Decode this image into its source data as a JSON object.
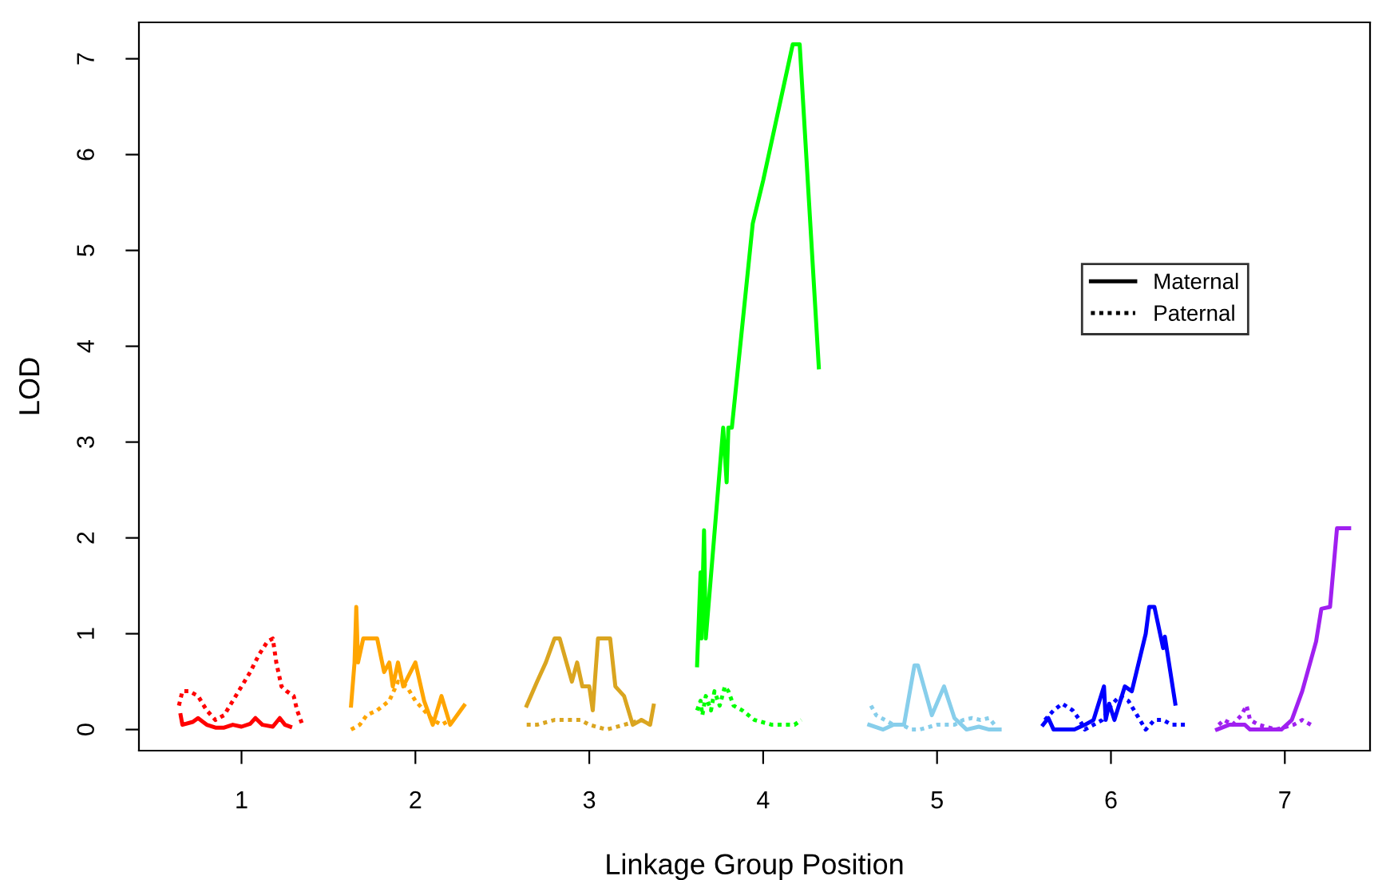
{
  "chart_data": {
    "type": "line",
    "xlabel": "Linkage Group Position",
    "ylabel": "LOD",
    "xlim": [
      0.41,
      7.49
    ],
    "xticks": [
      1,
      2,
      3,
      4,
      5,
      6,
      7
    ],
    "ylim": [
      -0.22,
      7.38
    ],
    "yticks": [
      0,
      1,
      2,
      3,
      4,
      5,
      6,
      7
    ],
    "grid": false,
    "marker": "none",
    "annotations": [
      "Maternal",
      "Paternal"
    ],
    "series": [
      {
        "color": "#ff0000",
        "line_style": "solid",
        "x": [
          0.65,
          0.66,
          0.72,
          0.75,
          0.8,
          0.85,
          0.9,
          0.95,
          1.0,
          1.05,
          1.08,
          1.12,
          1.18,
          1.22,
          1.25,
          1.28
        ],
        "values": [
          0.15,
          0.05,
          0.08,
          0.12,
          0.05,
          0.02,
          0.02,
          0.05,
          0.03,
          0.06,
          0.12,
          0.05,
          0.03,
          0.12,
          0.05,
          0.03
        ]
      },
      {
        "color": "#ff0000",
        "line_style": "dotted",
        "x": [
          0.64,
          0.66,
          0.7,
          0.75,
          0.8,
          0.85,
          0.9,
          0.95,
          1.0,
          1.05,
          1.1,
          1.15,
          1.18,
          1.2,
          1.23,
          1.26,
          1.3,
          1.32,
          1.35
        ],
        "values": [
          0.25,
          0.4,
          0.4,
          0.35,
          0.2,
          0.1,
          0.15,
          0.3,
          0.45,
          0.6,
          0.78,
          0.92,
          0.95,
          0.7,
          0.45,
          0.4,
          0.35,
          0.2,
          0.05
        ]
      },
      {
        "color": "#ffa500",
        "line_style": "solid",
        "x": [
          1.63,
          1.65,
          1.66,
          1.67,
          1.7,
          1.78,
          1.82,
          1.85,
          1.87,
          1.9,
          1.93,
          2.0,
          2.05,
          2.1,
          2.15,
          2.2,
          2.28
        ],
        "values": [
          0.25,
          0.7,
          1.28,
          0.7,
          0.95,
          0.95,
          0.6,
          0.7,
          0.45,
          0.7,
          0.45,
          0.7,
          0.3,
          0.05,
          0.35,
          0.05,
          0.25
        ]
      },
      {
        "color": "#ffa500",
        "line_style": "dotted",
        "x": [
          1.63,
          1.68,
          1.72,
          1.78,
          1.85,
          1.9,
          1.95,
          2.0,
          2.05,
          2.1,
          2.15,
          2.2
        ],
        "values": [
          0.0,
          0.05,
          0.15,
          0.2,
          0.3,
          0.5,
          0.45,
          0.3,
          0.2,
          0.1,
          0.05,
          0.1
        ]
      },
      {
        "color": "#daa520",
        "line_style": "solid",
        "x": [
          2.64,
          2.7,
          2.75,
          2.8,
          2.83,
          2.9,
          2.93,
          2.96,
          3.0,
          3.02,
          3.05,
          3.12,
          3.15,
          3.2,
          3.25,
          3.3,
          3.35,
          3.37
        ],
        "values": [
          0.25,
          0.5,
          0.7,
          0.95,
          0.95,
          0.5,
          0.7,
          0.45,
          0.45,
          0.2,
          0.95,
          0.95,
          0.45,
          0.35,
          0.05,
          0.1,
          0.05,
          0.25
        ]
      },
      {
        "color": "#daa520",
        "line_style": "dotted",
        "x": [
          2.64,
          2.7,
          2.8,
          2.9,
          2.95,
          3.0,
          3.1,
          3.2,
          3.3,
          3.35
        ],
        "values": [
          0.05,
          0.05,
          0.1,
          0.1,
          0.1,
          0.05,
          0.0,
          0.05,
          0.1,
          0.05
        ]
      },
      {
        "color": "#00ff00",
        "line_style": "solid",
        "x": [
          3.62,
          3.64,
          3.645,
          3.66,
          3.67,
          3.77,
          3.79,
          3.8,
          3.82,
          3.94,
          4.0,
          4.17,
          4.21,
          4.32
        ],
        "values": [
          0.67,
          1.64,
          0.95,
          2.08,
          0.95,
          3.15,
          2.58,
          3.15,
          3.15,
          5.28,
          5.73,
          7.15,
          7.15,
          3.78
        ]
      },
      {
        "color": "#00ff00",
        "line_style": "dotted",
        "x": [
          3.62,
          3.64,
          3.65,
          3.67,
          3.7,
          3.72,
          3.75,
          3.78,
          3.8,
          3.83,
          3.88,
          3.95,
          4.05,
          4.12,
          4.18,
          4.22
        ],
        "values": [
          0.2,
          0.3,
          0.15,
          0.35,
          0.2,
          0.4,
          0.25,
          0.45,
          0.4,
          0.25,
          0.2,
          0.1,
          0.05,
          0.05,
          0.05,
          0.1
        ]
      },
      {
        "color": "#87ceeb",
        "line_style": "solid",
        "x": [
          4.61,
          4.69,
          4.75,
          4.81,
          4.87,
          4.89,
          4.97,
          5.04,
          5.1,
          5.17,
          5.24,
          5.3,
          5.36
        ],
        "values": [
          0.05,
          0.0,
          0.05,
          0.05,
          0.67,
          0.67,
          0.15,
          0.45,
          0.12,
          0.0,
          0.03,
          0.0,
          0.0
        ]
      },
      {
        "color": "#87ceeb",
        "line_style": "dotted",
        "x": [
          4.62,
          4.65,
          4.7,
          4.75,
          4.8,
          4.85,
          4.9,
          5.0,
          5.05,
          5.1,
          5.15,
          5.2,
          5.25,
          5.3,
          5.33
        ],
        "values": [
          0.25,
          0.15,
          0.1,
          0.05,
          0.05,
          0.0,
          0.0,
          0.05,
          0.05,
          0.05,
          0.1,
          0.12,
          0.1,
          0.12,
          0.05
        ]
      },
      {
        "color": "#0000ff",
        "line_style": "solid",
        "x": [
          5.61,
          5.64,
          5.67,
          5.79,
          5.85,
          5.9,
          5.96,
          5.97,
          5.99,
          6.02,
          6.08,
          6.12,
          6.2,
          6.22,
          6.25,
          6.3,
          6.31,
          6.37
        ],
        "values": [
          0.05,
          0.12,
          0.0,
          0.0,
          0.05,
          0.1,
          0.45,
          0.1,
          0.27,
          0.1,
          0.45,
          0.4,
          1.0,
          1.28,
          1.28,
          0.85,
          0.97,
          0.27
        ]
      },
      {
        "color": "#0000ff",
        "line_style": "dotted",
        "x": [
          5.62,
          5.67,
          5.72,
          5.78,
          5.82,
          5.85,
          5.9,
          5.95,
          6.0,
          6.05,
          6.1,
          6.15,
          6.2,
          6.25,
          6.3,
          6.35,
          6.45
        ],
        "values": [
          0.1,
          0.2,
          0.27,
          0.2,
          0.1,
          0.0,
          0.05,
          0.1,
          0.25,
          0.35,
          0.3,
          0.15,
          0.0,
          0.1,
          0.1,
          0.05,
          0.05
        ]
      },
      {
        "color": "#a020f0",
        "line_style": "solid",
        "x": [
          6.61,
          6.68,
          6.77,
          6.8,
          6.98,
          7.04,
          7.1,
          7.18,
          7.21,
          7.26,
          7.3,
          7.37
        ],
        "values": [
          0.0,
          0.05,
          0.05,
          0.0,
          0.0,
          0.1,
          0.4,
          0.92,
          1.26,
          1.28,
          2.1,
          2.1
        ]
      },
      {
        "color": "#a020f0",
        "line_style": "dotted",
        "x": [
          6.62,
          6.65,
          6.7,
          6.75,
          6.78,
          6.8,
          6.85,
          6.95,
          7.05,
          7.1,
          7.15
        ],
        "values": [
          0.05,
          0.1,
          0.05,
          0.15,
          0.25,
          0.1,
          0.05,
          0.0,
          0.05,
          0.1,
          0.05
        ]
      }
    ]
  }
}
